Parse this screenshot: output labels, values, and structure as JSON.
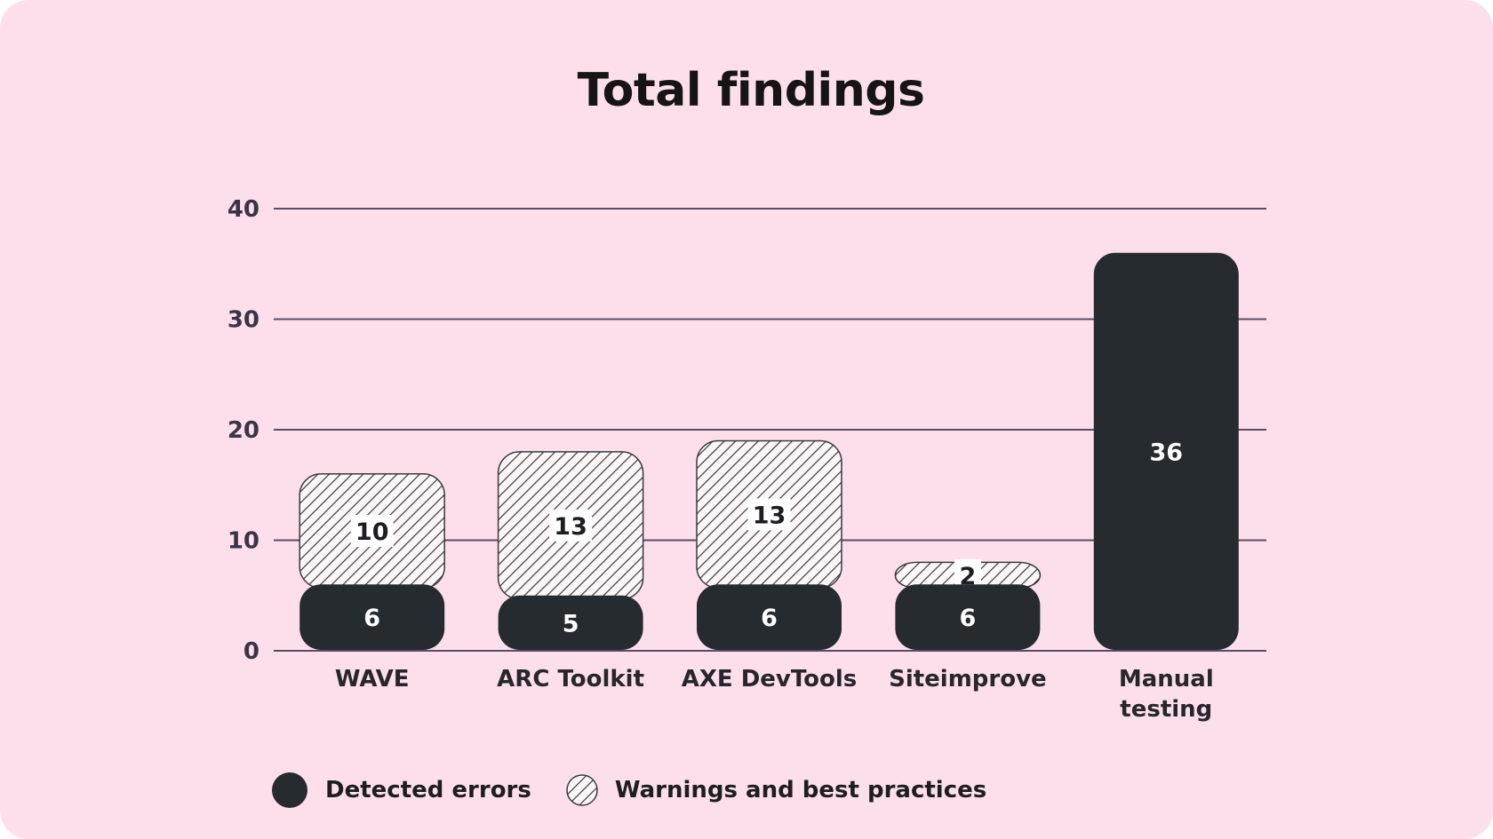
{
  "chart_data": {
    "type": "bar",
    "stacked": true,
    "title": "Total findings",
    "categories": [
      "WAVE",
      "ARC Toolkit",
      "AXE DevTools",
      "Siteimprove",
      "Manual testing"
    ],
    "series": [
      {
        "name": "Detected errors",
        "values": [
          6,
          5,
          6,
          6,
          36
        ],
        "color": "#262b2f",
        "fill": "solid"
      },
      {
        "name": "Warnings and best practices",
        "values": [
          10,
          13,
          13,
          2,
          0
        ],
        "color": "#3a3a3a",
        "fill": "hatched"
      }
    ],
    "ylim": [
      0,
      40
    ],
    "yticks": [
      0,
      10,
      20,
      30,
      40
    ],
    "grid": true,
    "legend": "bottom-left",
    "colors": {
      "background": "#fddfec",
      "grid": "#5a4d63",
      "label": "#27262d"
    }
  }
}
